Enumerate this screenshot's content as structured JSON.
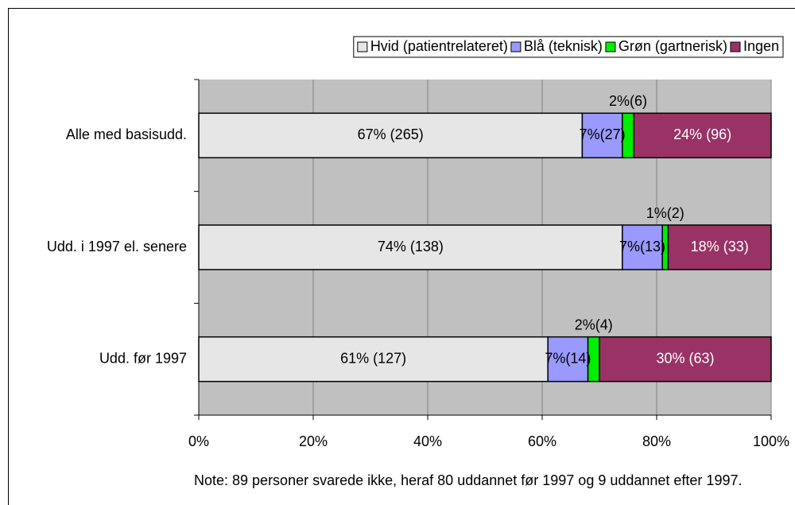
{
  "chart_data": {
    "type": "stacked_barh",
    "categories": [
      "Alle med basisudd.",
      "Udd. i 1997 el. senere",
      "Udd. før 1997"
    ],
    "series": [
      {
        "name": "Hvid (patientrelateret)",
        "color": "#e6e6e6",
        "values": [
          67,
          74,
          61
        ],
        "value_labels": [
          "67% (265)",
          "74% (138)",
          "61% (127)"
        ]
      },
      {
        "name": "Blå (teknisk)",
        "color": "#9999ff",
        "values": [
          7,
          7,
          7
        ],
        "value_labels": [
          "7%(27)",
          "7%(13)",
          "7%(14)"
        ]
      },
      {
        "name": "Grøn (gartnerisk)",
        "color": "#00ee00",
        "values": [
          2,
          1,
          2
        ],
        "value_labels": [
          "2%(6)",
          "1%(2)",
          "2%(4)"
        ]
      },
      {
        "name": "Ingen",
        "color": "#993366",
        "values": [
          24,
          18,
          30
        ],
        "value_labels": [
          "24% (96)",
          "18% (33)",
          "30% (63)"
        ]
      }
    ],
    "xlim": [
      0,
      100
    ],
    "xticks": [
      {
        "value": 0,
        "label": "0%"
      },
      {
        "value": 20,
        "label": "20%"
      },
      {
        "value": 40,
        "label": "40%"
      },
      {
        "value": 60,
        "label": "60%"
      },
      {
        "value": 80,
        "label": "80%"
      },
      {
        "value": 100,
        "label": "100%"
      }
    ],
    "grid": true,
    "legend": "top-right",
    "note": "Note: 89 personer svarede ikke, heraf 80 uddannet før 1997 og 9 uddannet efter 1997."
  }
}
